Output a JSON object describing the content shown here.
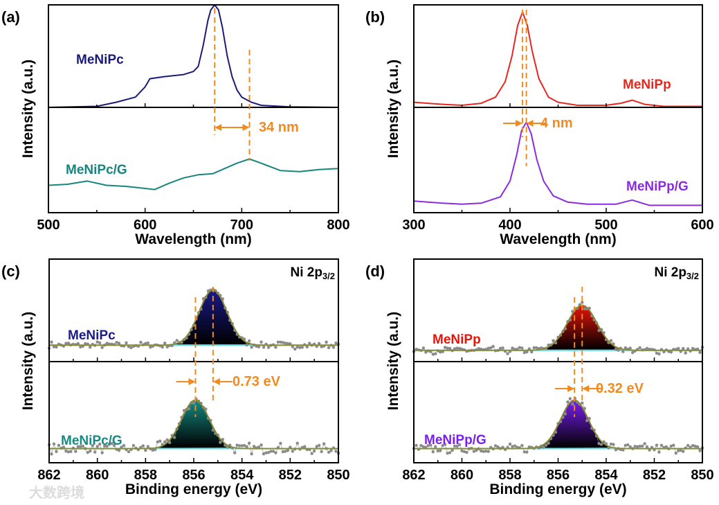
{
  "chart_data": [
    {
      "panel": "(a)",
      "type": "line",
      "xlabel": "Wavelength (nm)",
      "ylabel": "Intensity (a.u.)",
      "xlim": [
        500,
        800
      ],
      "xticks": [
        500,
        600,
        700,
        800
      ],
      "series": [
        {
          "name": "MeNiPc",
          "color": "#1a1a7a",
          "subpanel": "upper",
          "x": [
            500,
            550,
            570,
            590,
            600,
            605,
            620,
            640,
            650,
            655,
            660,
            665,
            668,
            672,
            676,
            680,
            685,
            690,
            695,
            700,
            710,
            720,
            750,
            800
          ],
          "y": [
            0,
            0.01,
            0.05,
            0.1,
            0.2,
            0.28,
            0.3,
            0.32,
            0.35,
            0.4,
            0.6,
            0.85,
            0.95,
            1.0,
            0.95,
            0.78,
            0.5,
            0.3,
            0.17,
            0.1,
            0.05,
            0.02,
            0.005,
            0
          ]
        },
        {
          "name": "MeNiPc/G",
          "color": "#16857f",
          "subpanel": "lower",
          "x": [
            500,
            520,
            540,
            560,
            580,
            600,
            610,
            625,
            640,
            655,
            670,
            680,
            695,
            708,
            720,
            740,
            760,
            780,
            800
          ],
          "y": [
            0.26,
            0.27,
            0.3,
            0.26,
            0.25,
            0.23,
            0.22,
            0.28,
            0.33,
            0.36,
            0.37,
            0.41,
            0.47,
            0.51,
            0.47,
            0.4,
            0.39,
            0.41,
            0.42
          ]
        }
      ],
      "markers": [
        672,
        708
      ],
      "annotation": "34 nm",
      "annotation_style": "arrow-right"
    },
    {
      "panel": "(b)",
      "type": "line",
      "xlabel": "Wavelength (nm)",
      "ylabel": "Intensity (a.u.)",
      "xlim": [
        300,
        600
      ],
      "xticks": [
        300,
        400,
        500,
        600
      ],
      "series": [
        {
          "name": "MeNiPp",
          "color": "#e8261e",
          "subpanel": "upper",
          "x": [
            300,
            330,
            350,
            370,
            385,
            395,
            402,
            408,
            413,
            418,
            423,
            430,
            440,
            450,
            470,
            500,
            515,
            527,
            540,
            560,
            600
          ],
          "y": [
            0.05,
            0.03,
            0.02,
            0.04,
            0.1,
            0.25,
            0.5,
            0.8,
            0.93,
            0.8,
            0.55,
            0.28,
            0.1,
            0.05,
            0.02,
            0.02,
            0.04,
            0.07,
            0.03,
            0.01,
            0.01
          ]
        },
        {
          "name": "MeNiPp/G",
          "color": "#8a2be2",
          "subpanel": "lower",
          "x": [
            300,
            330,
            350,
            370,
            390,
            400,
            407,
            412,
            417,
            422,
            428,
            435,
            445,
            460,
            480,
            510,
            527,
            545,
            570,
            600
          ],
          "y": [
            0.11,
            0.09,
            0.08,
            0.09,
            0.15,
            0.3,
            0.55,
            0.78,
            0.86,
            0.75,
            0.5,
            0.3,
            0.16,
            0.1,
            0.08,
            0.08,
            0.12,
            0.07,
            0.07,
            0.07
          ]
        }
      ],
      "markers": [
        413,
        417
      ],
      "annotation": "4 nm",
      "annotation_style": "arrows-in"
    },
    {
      "panel": "(c)",
      "type": "scatter",
      "title": "Ni 2p",
      "title_sub": "3/2",
      "xlabel": "Binding energy (eV)",
      "ylabel": "Intensity (a.u.)",
      "xlim": [
        862,
        850
      ],
      "xticks": [
        862,
        860,
        858,
        856,
        854,
        852,
        850
      ],
      "series": [
        {
          "name": "MeNiPc",
          "color": "#1a1a8a",
          "subpanel": "upper",
          "center": 855.2,
          "fwhm": 1.35,
          "height": 0.54,
          "baseline": 0.16,
          "noise": 0.03
        },
        {
          "name": "MeNiPc/G",
          "color": "#148a84",
          "subpanel": "lower",
          "center": 855.93,
          "fwhm": 1.35,
          "height": 0.48,
          "baseline": 0.14,
          "noise": 0.045
        }
      ],
      "markers": [
        855.93,
        855.2
      ],
      "annotation": "0.73 eV",
      "annotation_style": "arrows-in"
    },
    {
      "panel": "(d)",
      "type": "scatter",
      "title": "Ni 2p",
      "title_sub": "3/2",
      "xlabel": "Binding energy (eV)",
      "ylabel": "Intensity (a.u.)",
      "xlim": [
        862,
        850
      ],
      "xticks": [
        862,
        860,
        858,
        856,
        854,
        852,
        850
      ],
      "series": [
        {
          "name": "MeNiPp",
          "color": "#e8140a",
          "subpanel": "upper",
          "center": 855.0,
          "fwhm": 1.45,
          "height": 0.44,
          "baseline": 0.11,
          "noise": 0.03
        },
        {
          "name": "MeNiPp/G",
          "color": "#7a1ef0",
          "subpanel": "lower",
          "center": 855.32,
          "fwhm": 1.35,
          "height": 0.48,
          "baseline": 0.14,
          "noise": 0.04
        }
      ],
      "markers": [
        855.32,
        855.0
      ],
      "annotation": "0.32 eV",
      "annotation_style": "arrows-in"
    }
  ],
  "colors": {
    "marker": "#f28a1e",
    "fit": "#8a8a3a",
    "background_line": "#5fe0e8",
    "points": "#8a8a8a"
  },
  "watermark": "大数跨境"
}
